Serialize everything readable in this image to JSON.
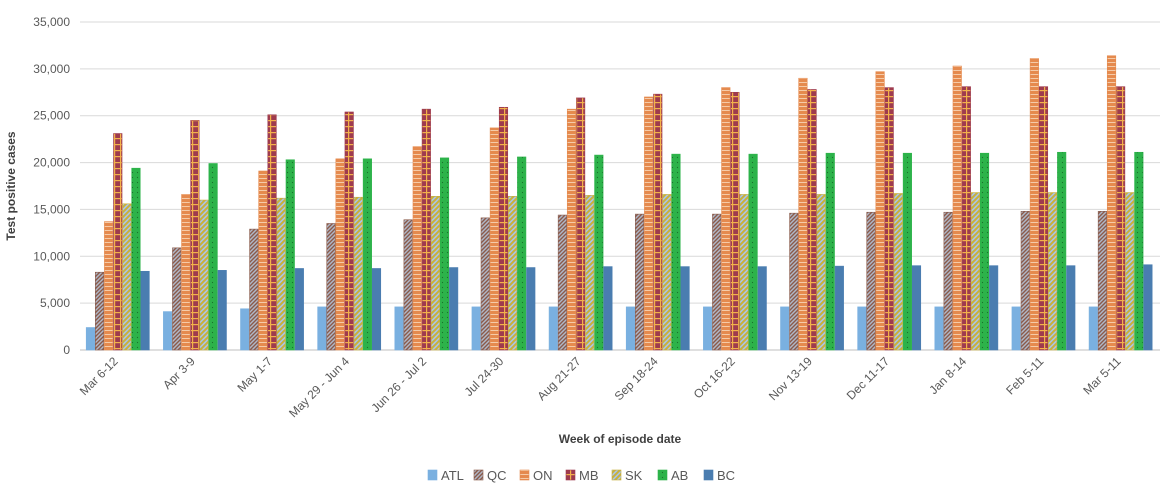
{
  "chart_data": {
    "type": "bar",
    "title": "",
    "xlabel": "Week of episode date",
    "ylabel": "Test positive cases",
    "ylim": [
      0,
      35000
    ],
    "yticks": [
      0,
      5000,
      10000,
      15000,
      20000,
      25000,
      30000,
      35000
    ],
    "ytick_labels": [
      "0",
      "5,000",
      "10,000",
      "15,000",
      "20,000",
      "25,000",
      "30,000",
      "35,000"
    ],
    "grid": true,
    "legend_position": "bottom",
    "categories": [
      "Mar 6-12",
      "Apr 3-9",
      "May 1-7",
      "May 29 - Jun 4",
      "Jun 26 - Jul 2",
      "Jul 24-30",
      "Aug 21-27",
      "Sep 18-24",
      "Oct 16-22",
      "Nov 13-19",
      "Dec 11-17",
      "Jan 8-14",
      "Feb 5-11",
      "Mar 5-11"
    ],
    "series": [
      {
        "name": "ATL",
        "color": "#7AB0E0",
        "values": [
          2400,
          4100,
          4400,
          4600,
          4600,
          4600,
          4600,
          4600,
          4600,
          4600,
          4600,
          4600,
          4600,
          4600
        ]
      },
      {
        "name": "QC",
        "color": "#8A5A4A",
        "values": [
          8300,
          10900,
          12900,
          13500,
          13900,
          14100,
          14400,
          14500,
          14500,
          14600,
          14700,
          14700,
          14800,
          14800
        ]
      },
      {
        "name": "ON",
        "color": "#E58A4E",
        "values": [
          13700,
          16600,
          19100,
          20400,
          21700,
          23700,
          25700,
          27000,
          28000,
          29000,
          29700,
          30300,
          31100,
          31400
        ]
      },
      {
        "name": "MB",
        "color": "#9E3B4E",
        "values": [
          23100,
          24500,
          25100,
          25400,
          25700,
          25900,
          26900,
          27300,
          27500,
          27800,
          28000,
          28100,
          28100,
          28100
        ]
      },
      {
        "name": "SK",
        "color": "#C9B03A",
        "values": [
          15600,
          16000,
          16200,
          16300,
          16400,
          16400,
          16500,
          16600,
          16600,
          16600,
          16700,
          16800,
          16800,
          16800
        ]
      },
      {
        "name": "AB",
        "color": "#2DB34A",
        "values": [
          19400,
          19900,
          20300,
          20400,
          20500,
          20600,
          20800,
          20900,
          20900,
          21000,
          21000,
          21000,
          21100,
          21100
        ]
      },
      {
        "name": "BC",
        "color": "#4A7DB0",
        "values": [
          8400,
          8500,
          8700,
          8700,
          8800,
          8800,
          8900,
          8900,
          8900,
          8950,
          9000,
          9000,
          9000,
          9100
        ]
      }
    ]
  }
}
